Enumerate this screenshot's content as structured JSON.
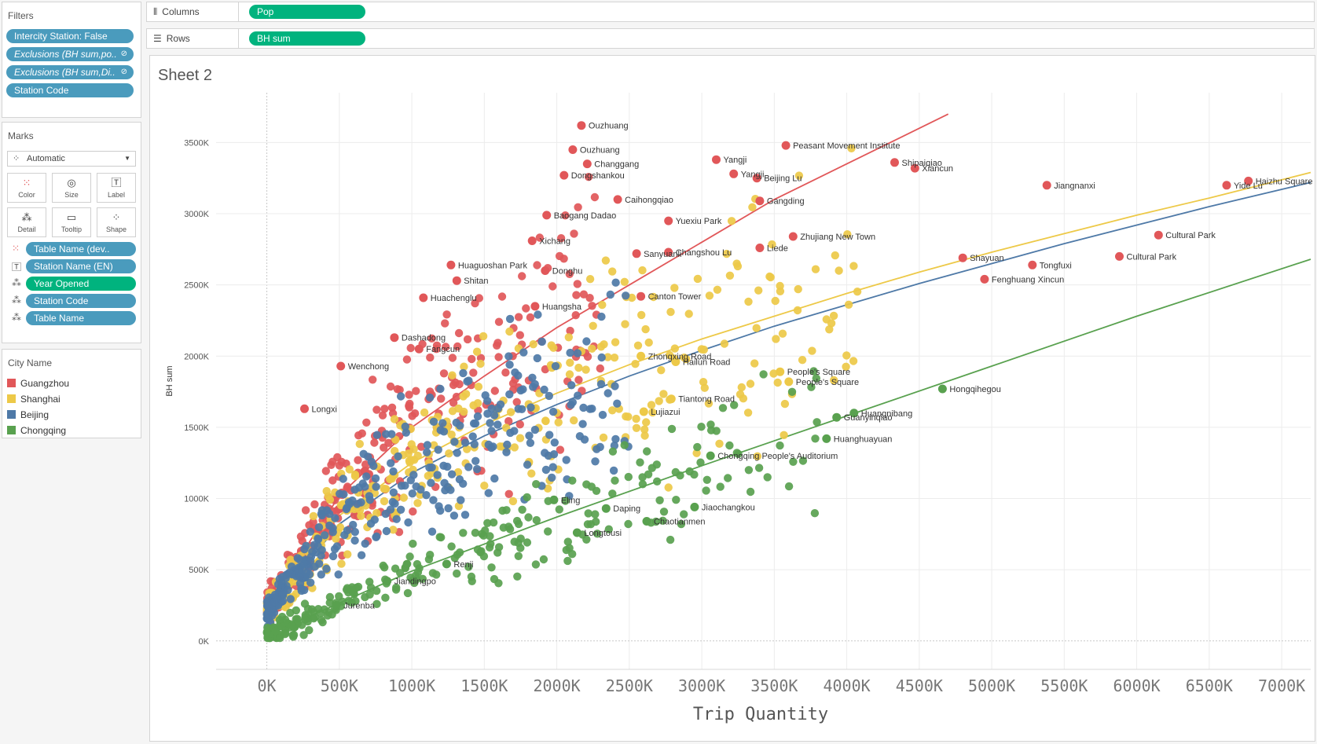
{
  "filters": {
    "title": "Filters",
    "items": [
      {
        "label": "Intercity Station: False",
        "italic": false,
        "pinned": false
      },
      {
        "label": "Exclusions (BH sum,po..",
        "italic": true,
        "pinned": true
      },
      {
        "label": "Exclusions (BH sum,Di..",
        "italic": true,
        "pinned": true
      },
      {
        "label": "Station Code",
        "italic": false,
        "pinned": false
      }
    ]
  },
  "marks": {
    "title": "Marks",
    "type": "Automatic",
    "buttons": [
      {
        "label": "Color",
        "icon": "color-icon"
      },
      {
        "label": "Size",
        "icon": "size-icon"
      },
      {
        "label": "Label",
        "icon": "label-icon"
      },
      {
        "label": "Detail",
        "icon": "detail-icon"
      },
      {
        "label": "Tooltip",
        "icon": "tooltip-icon"
      },
      {
        "label": "Shape",
        "icon": "shape-icon"
      }
    ],
    "encodings": [
      {
        "label": "Table Name (dev..",
        "icon": "color-encoding-icon",
        "color": "blue"
      },
      {
        "label": "Station Name (EN)",
        "icon": "label-encoding-icon",
        "color": "blue"
      },
      {
        "label": "Year Opened",
        "icon": "detail-encoding-icon",
        "color": "green"
      },
      {
        "label": "Station Code",
        "icon": "detail-encoding-icon",
        "color": "blue"
      },
      {
        "label": "Table Name",
        "icon": "detail-encoding-icon",
        "color": "blue"
      }
    ]
  },
  "legend": {
    "title": "City Name",
    "items": [
      {
        "label": "Guangzhou",
        "color": "#e15759"
      },
      {
        "label": "Shanghai",
        "color": "#edc948"
      },
      {
        "label": "Beijing",
        "color": "#4e79a7"
      },
      {
        "label": "Chongqing",
        "color": "#59a14f"
      }
    ]
  },
  "shelves": {
    "columns_label": "Columns",
    "columns_pill": "Pop",
    "rows_label": "Rows",
    "rows_pill": "BH sum"
  },
  "sheet_title": "Sheet 2",
  "chart_data": {
    "type": "scatter",
    "xlabel": "Trip Quantity",
    "ylabel": "BH sum",
    "xlim": [
      -350000,
      7200000
    ],
    "ylim": [
      -200000,
      3850000
    ],
    "x_ticks": [
      "0K",
      "500K",
      "1000K",
      "1500K",
      "2000K",
      "2500K",
      "3000K",
      "3500K",
      "4000K",
      "4500K",
      "5000K",
      "5500K",
      "6000K",
      "6500K",
      "7000K"
    ],
    "y_ticks": [
      "0K",
      "500K",
      "1000K",
      "1500K",
      "2000K",
      "2500K",
      "3000K",
      "3500K"
    ],
    "grid": true,
    "trend_lines": [
      {
        "city": "Guangzhou",
        "color": "#e15759",
        "model": "power",
        "points": [
          [
            0,
            230000
          ],
          [
            500000,
            1020000
          ],
          [
            1000000,
            1500000
          ],
          [
            1500000,
            1860000
          ],
          [
            2000000,
            2200000
          ],
          [
            2500000,
            2500000
          ],
          [
            3000000,
            2800000
          ],
          [
            3500000,
            3100000
          ],
          [
            4000000,
            3350000
          ],
          [
            4500000,
            3600000
          ],
          [
            4700000,
            3700000
          ]
        ]
      },
      {
        "city": "Shanghai",
        "color": "#edc948",
        "model": "power",
        "points": [
          [
            0,
            220000
          ],
          [
            500000,
            880000
          ],
          [
            1000000,
            1250000
          ],
          [
            1500000,
            1520000
          ],
          [
            2000000,
            1740000
          ],
          [
            2500000,
            1940000
          ],
          [
            3000000,
            2120000
          ],
          [
            3500000,
            2280000
          ],
          [
            4000000,
            2440000
          ],
          [
            4500000,
            2590000
          ],
          [
            5000000,
            2730000
          ],
          [
            5500000,
            2860000
          ],
          [
            6000000,
            2990000
          ],
          [
            6500000,
            3110000
          ],
          [
            7200000,
            3290000
          ]
        ]
      },
      {
        "city": "Beijing",
        "color": "#4e79a7",
        "model": "power",
        "points": [
          [
            0,
            200000
          ],
          [
            500000,
            820000
          ],
          [
            1000000,
            1180000
          ],
          [
            1500000,
            1440000
          ],
          [
            2000000,
            1660000
          ],
          [
            2500000,
            1860000
          ],
          [
            3000000,
            2040000
          ],
          [
            3500000,
            2210000
          ],
          [
            4000000,
            2360000
          ],
          [
            4500000,
            2510000
          ],
          [
            5000000,
            2650000
          ],
          [
            5500000,
            2790000
          ],
          [
            6000000,
            2920000
          ],
          [
            6500000,
            3050000
          ],
          [
            7200000,
            3220000
          ]
        ]
      },
      {
        "city": "Chongqing",
        "color": "#59a14f",
        "model": "linear",
        "points": [
          [
            0,
            40000
          ],
          [
            1000000,
            490000
          ],
          [
            2000000,
            870000
          ],
          [
            3000000,
            1230000
          ],
          [
            4000000,
            1580000
          ],
          [
            5000000,
            1930000
          ],
          [
            6000000,
            2280000
          ],
          [
            7200000,
            2680000
          ]
        ]
      }
    ],
    "labeled_points": [
      {
        "label": "Ouzhuang",
        "x": 2170000,
        "y": 3620000,
        "city": "Guangzhou"
      },
      {
        "label": "Ouzhuang",
        "x": 2110000,
        "y": 3450000,
        "city": "Guangzhou"
      },
      {
        "label": "Changgang",
        "x": 2210000,
        "y": 3350000,
        "city": "Guangzhou"
      },
      {
        "label": "Dongshankou",
        "x": 2050000,
        "y": 3270000,
        "city": "Guangzhou"
      },
      {
        "label": "Caihongqiao",
        "x": 2420000,
        "y": 3100000,
        "city": "Guangzhou"
      },
      {
        "label": "Baogang Dadao",
        "x": 1930000,
        "y": 2990000,
        "city": "Guangzhou"
      },
      {
        "label": "Xichang",
        "x": 1830000,
        "y": 2810000,
        "city": "Guangzhou"
      },
      {
        "label": "Sanyuanli",
        "x": 2550000,
        "y": 2720000,
        "city": "Guangzhou"
      },
      {
        "label": "Yuexiu Park",
        "x": 2770000,
        "y": 2950000,
        "city": "Guangzhou"
      },
      {
        "label": "Donghu",
        "x": 1920000,
        "y": 2600000,
        "city": "Guangzhou"
      },
      {
        "label": "Changshou Lu",
        "x": 2770000,
        "y": 2730000,
        "city": "Guangzhou"
      },
      {
        "label": "Huaguoshan Park",
        "x": 1270000,
        "y": 2640000,
        "city": "Guangzhou"
      },
      {
        "label": "Shitan",
        "x": 1310000,
        "y": 2530000,
        "city": "Guangzhou"
      },
      {
        "label": "Huangsha",
        "x": 1850000,
        "y": 2350000,
        "city": "Guangzhou"
      },
      {
        "label": "Huachenglu",
        "x": 1080000,
        "y": 2410000,
        "city": "Guangzhou"
      },
      {
        "label": "Canton Tower",
        "x": 2580000,
        "y": 2420000,
        "city": "Guangzhou"
      },
      {
        "label": "Dashadong",
        "x": 880000,
        "y": 2130000,
        "city": "Guangzhou"
      },
      {
        "label": "Fangcun",
        "x": 1050000,
        "y": 2050000,
        "city": "Guangzhou"
      },
      {
        "label": "Wenchong",
        "x": 510000,
        "y": 1930000,
        "city": "Guangzhou"
      },
      {
        "label": "Longxi",
        "x": 260000,
        "y": 1630000,
        "city": "Guangzhou"
      },
      {
        "label": "Yangji",
        "x": 3100000,
        "y": 3380000,
        "city": "Guangzhou"
      },
      {
        "label": "Yangji",
        "x": 3220000,
        "y": 3280000,
        "city": "Guangzhou"
      },
      {
        "label": "Peasant Movement Institute",
        "x": 3580000,
        "y": 3480000,
        "city": "Guangzhou"
      },
      {
        "label": "Beijing Lu",
        "x": 3380000,
        "y": 3250000,
        "city": "Guangzhou"
      },
      {
        "label": "Shipaiqiao",
        "x": 4330000,
        "y": 3360000,
        "city": "Guangzhou"
      },
      {
        "label": "Xiancun",
        "x": 4470000,
        "y": 3320000,
        "city": "Guangzhou"
      },
      {
        "label": "Gangding",
        "x": 3400000,
        "y": 3090000,
        "city": "Guangzhou"
      },
      {
        "label": "Zhujiang New Town",
        "x": 3630000,
        "y": 2840000,
        "city": "Guangzhou"
      },
      {
        "label": "Liede",
        "x": 3400000,
        "y": 2760000,
        "city": "Guangzhou"
      },
      {
        "label": "Jiangnanxi",
        "x": 5380000,
        "y": 3200000,
        "city": "Guangzhou"
      },
      {
        "label": "Haizhu Square",
        "x": 6770000,
        "y": 3230000,
        "city": "Guangzhou"
      },
      {
        "label": "Yide Lu",
        "x": 6620000,
        "y": 3200000,
        "city": "Guangzhou"
      },
      {
        "label": "Cultural Park",
        "x": 6150000,
        "y": 2850000,
        "city": "Guangzhou"
      },
      {
        "label": "Cultural Park",
        "x": 5880000,
        "y": 2700000,
        "city": "Guangzhou"
      },
      {
        "label": "Shayuan",
        "x": 4800000,
        "y": 2690000,
        "city": "Guangzhou"
      },
      {
        "label": "Tongfuxi",
        "x": 5280000,
        "y": 2640000,
        "city": "Guangzhou"
      },
      {
        "label": "Fenghuang Xincun",
        "x": 4950000,
        "y": 2540000,
        "city": "Guangzhou"
      },
      {
        "label": "Zhongxing Road",
        "x": 2580000,
        "y": 2000000,
        "city": "Shanghai"
      },
      {
        "label": "Hailun Road",
        "x": 2820000,
        "y": 1960000,
        "city": "Shanghai"
      },
      {
        "label": "People's Square",
        "x": 3540000,
        "y": 1890000,
        "city": "Shanghai"
      },
      {
        "label": "People's Square",
        "x": 3600000,
        "y": 1820000,
        "city": "Shanghai"
      },
      {
        "label": "Tiantong Road",
        "x": 2790000,
        "y": 1700000,
        "city": "Shanghai"
      },
      {
        "label": "Lujiazui",
        "x": 2600000,
        "y": 1610000,
        "city": "Shanghai"
      },
      {
        "label": "Hongqihegou",
        "x": 4660000,
        "y": 1770000,
        "city": "Chongqing"
      },
      {
        "label": "Huangnibang",
        "x": 4050000,
        "y": 1600000,
        "city": "Chongqing"
      },
      {
        "label": "Guanyinqiao",
        "x": 3930000,
        "y": 1570000,
        "city": "Chongqing"
      },
      {
        "label": "Huanghuayuan",
        "x": 3860000,
        "y": 1420000,
        "city": "Chongqing"
      },
      {
        "label": "Chongqing People's Auditorium",
        "x": 3060000,
        "y": 1300000,
        "city": "Chongqing"
      },
      {
        "label": "Jiaochangkou",
        "x": 2950000,
        "y": 940000,
        "city": "Chongqing"
      },
      {
        "label": "Daping",
        "x": 2340000,
        "y": 930000,
        "city": "Chongqing"
      },
      {
        "label": "Chaotianmen",
        "x": 2620000,
        "y": 840000,
        "city": "Chongqing"
      },
      {
        "label": "Eling",
        "x": 1980000,
        "y": 990000,
        "city": "Chongqing"
      },
      {
        "label": "Longtousi",
        "x": 2140000,
        "y": 760000,
        "city": "Chongqing"
      },
      {
        "label": "Renji",
        "x": 1240000,
        "y": 540000,
        "city": "Chongqing"
      },
      {
        "label": "Jiandingpo",
        "x": 830000,
        "y": 420000,
        "city": "Chongqing"
      },
      {
        "label": "Jurenba",
        "x": 480000,
        "y": 250000,
        "city": "Chongqing"
      }
    ],
    "clusters": [
      {
        "city": "Guangzhou",
        "count": 320,
        "x_range": [
          0,
          2300000
        ],
        "seed": 11
      },
      {
        "city": "Shanghai",
        "count": 360,
        "x_range": [
          0,
          4100000
        ],
        "seed": 23
      },
      {
        "city": "Beijing",
        "count": 340,
        "x_range": [
          0,
          2500000
        ],
        "seed": 37
      },
      {
        "city": "Chongqing",
        "count": 260,
        "x_range": [
          0,
          3800000
        ],
        "seed": 53
      }
    ]
  }
}
